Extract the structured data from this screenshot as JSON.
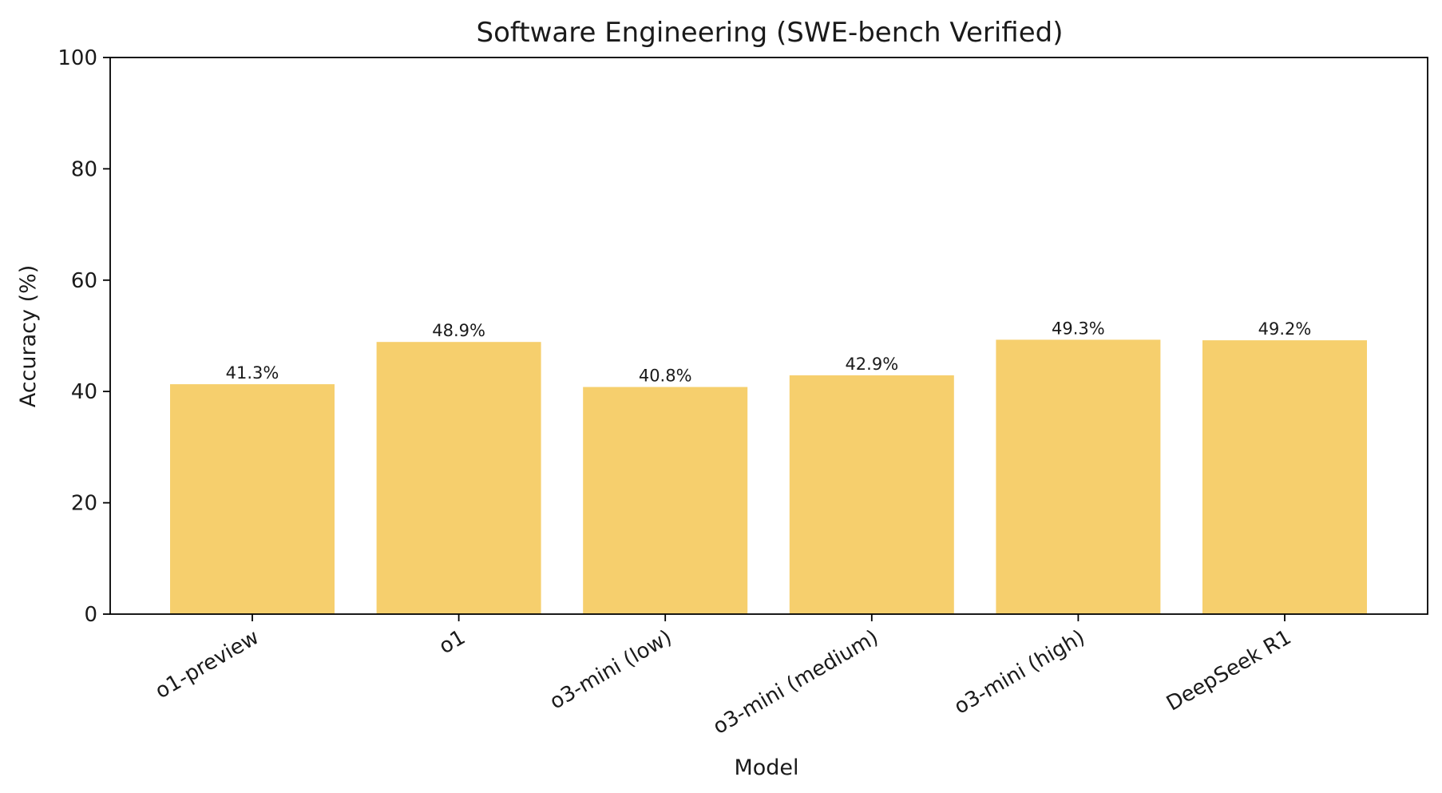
{
  "chart_data": {
    "type": "bar",
    "title": "Software Engineering (SWE-bench Verified)",
    "xlabel": "Model",
    "ylabel": "Accuracy (%)",
    "categories": [
      "o1-preview",
      "o1",
      "o3-mini (low)",
      "o3-mini (medium)",
      "o3-mini (high)",
      "DeepSeek R1"
    ],
    "values": [
      41.3,
      48.9,
      40.8,
      42.9,
      49.3,
      49.2
    ],
    "value_labels": [
      "41.3%",
      "48.9%",
      "40.8%",
      "42.9%",
      "49.3%",
      "49.2%"
    ],
    "ylim": [
      0,
      100
    ],
    "yticks": [
      0,
      20,
      40,
      60,
      80,
      100
    ],
    "grid": false,
    "bar_color": "#f6cf6d"
  }
}
